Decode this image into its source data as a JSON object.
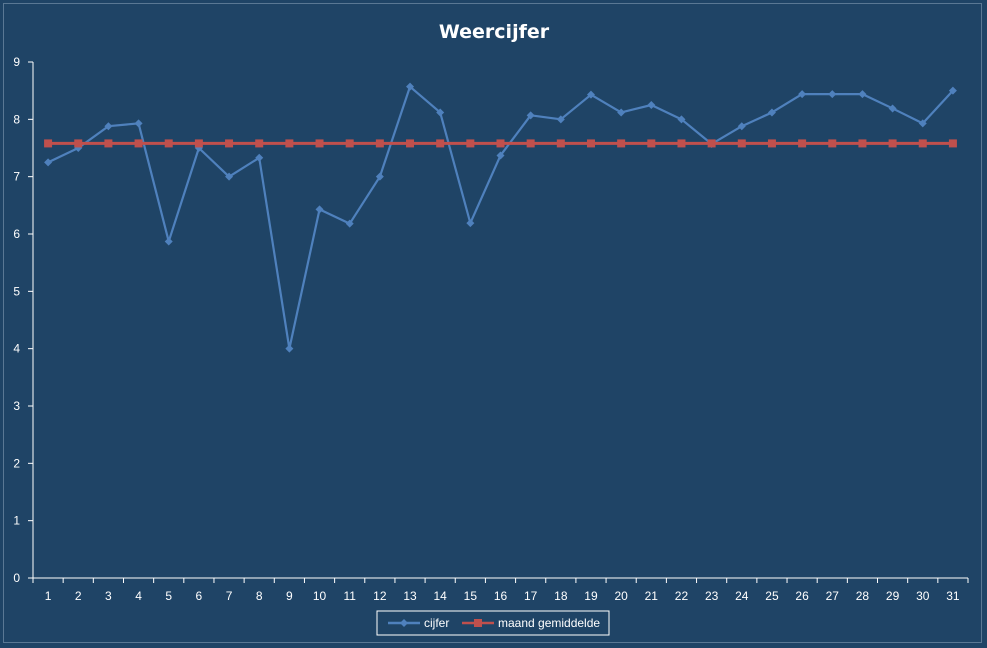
{
  "chart_data": {
    "type": "line",
    "title": "Weercijfer",
    "xlabel": "",
    "ylabel": "",
    "ylim": [
      0,
      9
    ],
    "yticks": [
      "0",
      "1",
      "2",
      "3",
      "4",
      "5",
      "6",
      "7",
      "8",
      "9"
    ],
    "categories": [
      "1",
      "2",
      "3",
      "4",
      "5",
      "6",
      "7",
      "8",
      "9",
      "10",
      "11",
      "12",
      "13",
      "14",
      "15",
      "16",
      "17",
      "18",
      "19",
      "20",
      "21",
      "22",
      "23",
      "24",
      "25",
      "26",
      "27",
      "28",
      "29",
      "30",
      "31"
    ],
    "grid": false,
    "legend_position": "bottom",
    "series": [
      {
        "name": "cijfer",
        "color": "#4F81BD",
        "marker": "diamond",
        "values": [
          7.25,
          7.5,
          7.88,
          7.93,
          5.87,
          7.5,
          7.0,
          7.33,
          4.0,
          6.43,
          6.18,
          7.0,
          8.57,
          8.12,
          6.19,
          7.37,
          8.07,
          8.0,
          8.43,
          8.12,
          8.25,
          8.0,
          7.57,
          7.88,
          8.12,
          8.44,
          8.44,
          8.44,
          8.19,
          7.93,
          8.5
        ]
      },
      {
        "name": "maand gemiddelde",
        "color": "#C0504D",
        "marker": "square",
        "values": [
          7.58,
          7.58,
          7.58,
          7.58,
          7.58,
          7.58,
          7.58,
          7.58,
          7.58,
          7.58,
          7.58,
          7.58,
          7.58,
          7.58,
          7.58,
          7.58,
          7.58,
          7.58,
          7.58,
          7.58,
          7.58,
          7.58,
          7.58,
          7.58,
          7.58,
          7.58,
          7.58,
          7.58,
          7.58,
          7.58,
          7.58
        ]
      }
    ]
  }
}
